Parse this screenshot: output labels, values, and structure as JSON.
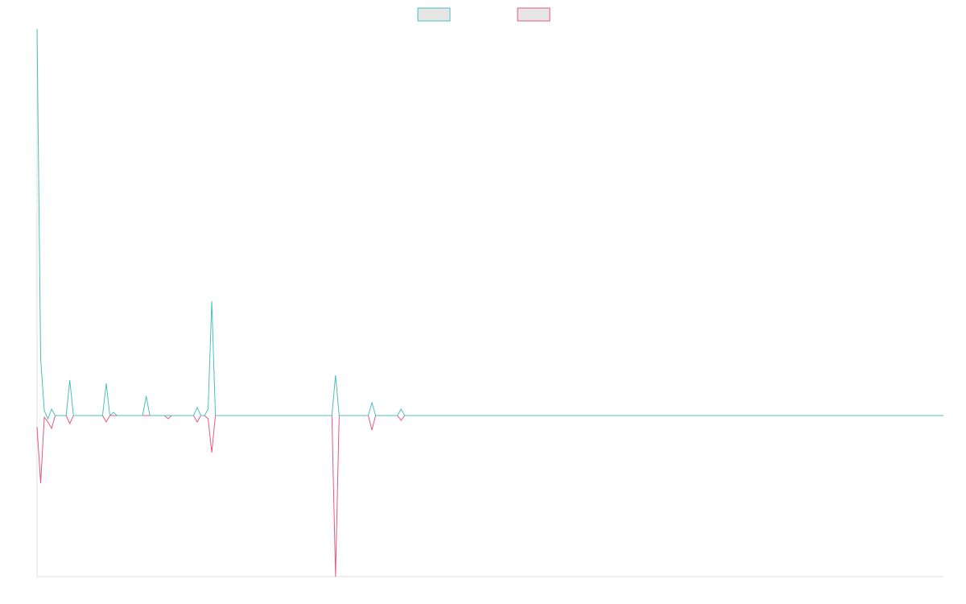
{
  "chart_data": {
    "type": "line",
    "categories": [
      null,
      null,
      null,
      null,
      null,
      null,
      null,
      null,
      null,
      null,
      null,
      null,
      null,
      null,
      null,
      null,
      null,
      null,
      null,
      null,
      null,
      null,
      null,
      null,
      null,
      null,
      null,
      null,
      null,
      null,
      null,
      null,
      null,
      null,
      null,
      null,
      null,
      null,
      null,
      null,
      null,
      null,
      null,
      null,
      null,
      null,
      null,
      null,
      null,
      null,
      null,
      null,
      null,
      null,
      null,
      null,
      null,
      null,
      null,
      null,
      null,
      null,
      null,
      null,
      null,
      null,
      null,
      null,
      null,
      null,
      null,
      null,
      null,
      null,
      null,
      null,
      null,
      null,
      null,
      null,
      null,
      null,
      null,
      null,
      null,
      null,
      null,
      null,
      null,
      null,
      null,
      null,
      null,
      null,
      null,
      null,
      null,
      null,
      null,
      null,
      null,
      null,
      null,
      null,
      null,
      null,
      null,
      null,
      null,
      null,
      null,
      null,
      null,
      null,
      null,
      null,
      null,
      null,
      null,
      null,
      null,
      null,
      null,
      null,
      null,
      null,
      null,
      null,
      null,
      null,
      null,
      null,
      null,
      null,
      null,
      null,
      null,
      null,
      null,
      null,
      null,
      null,
      null,
      null,
      null,
      null,
      null,
      null,
      null,
      null,
      null,
      null,
      null,
      null,
      null,
      null,
      null,
      null,
      null,
      null,
      null,
      null,
      null,
      null,
      null,
      null,
      null,
      null,
      null,
      null,
      null,
      null,
      null,
      null,
      null,
      null,
      null,
      null,
      null,
      null,
      null,
      null,
      null,
      null,
      null,
      null,
      null,
      null,
      null,
      null,
      null,
      null,
      null,
      null,
      null,
      null,
      null,
      null,
      null,
      null,
      null,
      null,
      null,
      null,
      null,
      null,
      null,
      null,
      null,
      null,
      null,
      null,
      null,
      null,
      null,
      null,
      null,
      null,
      null,
      null,
      null,
      null,
      null,
      null,
      null,
      null,
      null,
      null,
      null,
      null,
      null,
      null,
      null,
      null,
      null,
      null,
      null,
      null,
      null,
      null,
      null,
      null,
      null,
      null,
      null,
      null,
      null,
      null,
      null,
      null
    ],
    "series": [
      {
        "color": "#e8577e",
        "values": [
          -7,
          -42,
          -1,
          -4,
          -8,
          0,
          0,
          0,
          0,
          -5,
          0,
          0,
          0,
          0,
          0,
          0,
          0,
          0,
          0,
          -4,
          0,
          0,
          0,
          0,
          0,
          0,
          0,
          0,
          0,
          0,
          0,
          0,
          0,
          0,
          0,
          0,
          -2,
          0,
          0,
          0,
          0,
          0,
          0,
          0,
          -4,
          0,
          0,
          -2,
          -23,
          0,
          0,
          0,
          0,
          0,
          0,
          0,
          0,
          0,
          0,
          0,
          0,
          0,
          0,
          0,
          0,
          0,
          0,
          0,
          0,
          0,
          0,
          0,
          0,
          0,
          0,
          0,
          0,
          0,
          0,
          0,
          0,
          0,
          -100,
          0,
          0,
          0,
          0,
          0,
          0,
          0,
          0,
          0,
          -9,
          0,
          0,
          0,
          0,
          0,
          0,
          0,
          -3,
          0,
          0,
          0,
          0,
          0,
          0,
          0,
          0,
          0,
          0,
          0,
          0,
          0,
          0,
          0,
          0,
          0,
          0,
          0,
          0,
          0,
          0,
          0,
          0,
          0,
          0,
          0,
          0,
          0,
          0,
          0,
          0,
          0,
          0,
          0,
          0,
          0,
          0,
          0,
          0,
          0,
          0,
          0,
          0,
          0,
          0,
          0,
          0,
          0,
          0,
          0,
          0,
          0,
          0,
          0,
          0,
          0,
          0,
          0,
          0,
          0,
          0,
          0,
          0,
          0,
          0,
          0,
          0,
          0,
          0,
          0,
          0,
          0,
          0,
          0,
          0,
          0,
          0,
          0,
          0,
          0,
          0,
          0,
          0,
          0,
          0,
          0,
          0,
          0,
          0,
          0,
          0,
          0,
          0,
          0,
          0,
          0,
          0,
          0,
          0,
          0,
          0,
          0,
          0,
          0,
          0,
          0,
          0,
          0,
          0,
          0,
          0,
          0,
          0,
          0,
          0,
          0,
          0,
          0,
          0,
          0,
          0,
          0,
          0,
          0,
          0,
          0,
          0,
          0,
          0,
          0,
          0,
          0,
          0,
          0,
          0,
          0,
          0,
          0,
          0,
          0,
          0,
          0,
          0,
          0,
          0,
          0,
          0,
          0
        ]
      },
      {
        "color": "#4bbfbf",
        "values": [
          240,
          35,
          3,
          -2,
          4,
          0,
          0,
          0,
          0,
          22,
          0,
          0,
          0,
          0,
          0,
          0,
          0,
          0,
          0,
          20,
          0,
          2,
          0,
          0,
          0,
          0,
          0,
          0,
          0,
          0,
          12,
          0,
          0,
          0,
          0,
          0,
          0,
          0,
          0,
          0,
          0,
          0,
          0,
          0,
          5,
          0,
          0,
          4,
          71,
          0,
          0,
          0,
          0,
          0,
          0,
          0,
          0,
          0,
          0,
          0,
          0,
          0,
          0,
          0,
          0,
          0,
          0,
          0,
          0,
          0,
          0,
          0,
          0,
          0,
          0,
          0,
          0,
          0,
          0,
          0,
          0,
          0,
          25,
          0,
          0,
          0,
          0,
          0,
          0,
          0,
          0,
          0,
          8,
          0,
          0,
          0,
          0,
          0,
          0,
          0,
          4,
          0,
          0,
          0,
          0,
          0,
          0,
          0,
          0,
          0,
          0,
          0,
          0,
          0,
          0,
          0,
          0,
          0,
          0,
          0,
          0,
          0,
          0,
          0,
          0,
          0,
          0,
          0,
          0,
          0,
          0,
          0,
          0,
          0,
          0,
          0,
          0,
          0,
          0,
          0,
          0,
          0,
          0,
          0,
          0,
          0,
          0,
          0,
          0,
          0,
          0,
          0,
          0,
          0,
          0,
          0,
          0,
          0,
          0,
          0,
          0,
          0,
          0,
          0,
          0,
          0,
          0,
          0,
          0,
          0,
          0,
          0,
          0,
          0,
          0,
          0,
          0,
          0,
          0,
          0,
          0,
          0,
          0,
          0,
          0,
          0,
          0,
          0,
          0,
          0,
          0,
          0,
          0,
          0,
          0,
          0,
          0,
          0,
          0,
          0,
          0,
          0,
          0,
          0,
          0,
          0,
          0,
          0,
          0,
          0,
          0,
          0,
          0,
          0,
          0,
          0,
          0,
          0,
          0,
          0,
          0,
          0,
          0,
          0,
          0,
          0,
          0,
          0,
          0,
          0,
          0,
          0,
          0,
          0,
          0,
          0,
          0,
          0,
          0,
          0,
          0,
          0,
          0,
          0,
          0,
          0,
          0,
          0,
          0,
          0
        ]
      }
    ],
    "ylim": [
      -100,
      240
    ],
    "legend": "top"
  }
}
